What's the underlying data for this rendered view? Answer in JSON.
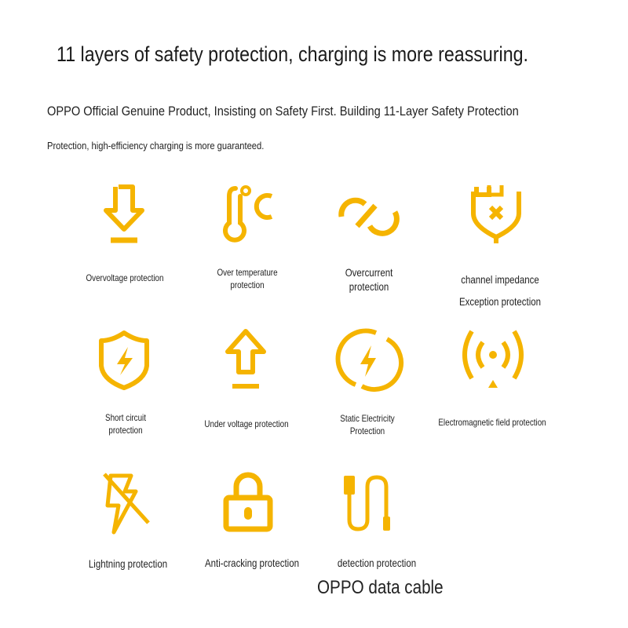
{
  "header": {
    "title": "11 layers of safety protection, charging is more reassuring.",
    "subtitle_line1": "OPPO Official Genuine Product, Insisting on Safety First. Building 11-Layer Safety Protection",
    "subtitle_line2": "Protection, high-efficiency charging is more guaranteed."
  },
  "accent_color": "#f5b400",
  "features": [
    {
      "icon": "download-arrow-icon",
      "lines": [
        "Overvoltage protection"
      ]
    },
    {
      "icon": "thermometer-celsius-icon",
      "lines": [
        "Over temperature",
        "protection"
      ]
    },
    {
      "icon": "current-break-icon",
      "lines": [
        "Overcurrent",
        "protection"
      ]
    },
    {
      "icon": "plug-x-icon",
      "lines": [
        "channel impedance",
        "Exception protection"
      ]
    },
    {
      "icon": "shield-bolt-icon",
      "lines": [
        "Short circuit",
        "protection"
      ]
    },
    {
      "icon": "upload-arrow-icon",
      "lines": [
        "Under voltage protection"
      ]
    },
    {
      "icon": "circle-bolt-icon",
      "lines": [
        "Static Electricity",
        "Protection"
      ]
    },
    {
      "icon": "signal-waves-icon",
      "lines": [
        "Electromagnetic field protection"
      ]
    },
    {
      "icon": "lightning-slash-icon",
      "lines": [
        "Lightning protection"
      ]
    },
    {
      "icon": "padlock-icon",
      "lines": [
        "Anti-cracking protection"
      ]
    },
    {
      "icon": "usb-cable-icon",
      "lines": [
        "detection protection"
      ]
    }
  ],
  "footer": {
    "label": "OPPO data cable"
  }
}
